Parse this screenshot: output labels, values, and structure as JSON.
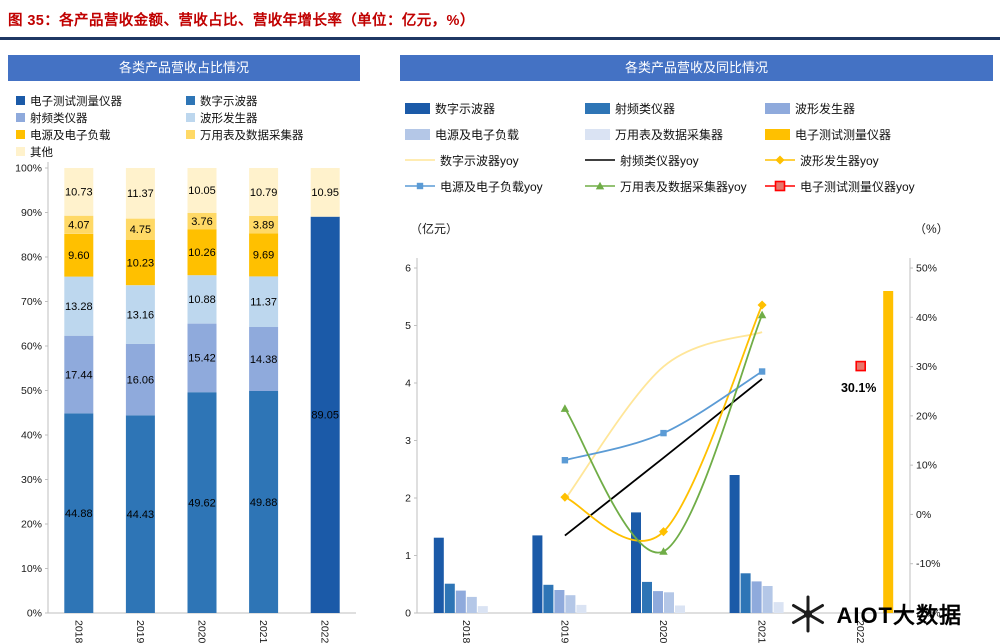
{
  "figure": {
    "title": "图 35：各产品营收金额、营收占比、营收年增长率（单位：亿元，%）",
    "title_color": "#C00000",
    "rule_color": "#1F3864",
    "header_bg": "#4472C4"
  },
  "watermark": {
    "text": "AIOT大数据",
    "logo": "asterisk-logo"
  },
  "chart_data": [
    {
      "id": "revenue-share",
      "type": "bar",
      "subtype": "stacked-100",
      "title": "各类产品营收占比情况",
      "categories": [
        "2018",
        "2019",
        "2020",
        "2021",
        "2022"
      ],
      "series": [
        {
          "name": "电子测试测量仪器",
          "color": "#1B5AA8",
          "values": [
            0,
            0,
            0,
            0,
            89.05
          ]
        },
        {
          "name": "数字示波器",
          "color": "#2E75B6",
          "values": [
            44.88,
            44.43,
            49.62,
            49.88,
            0
          ]
        },
        {
          "name": "射频类仪器",
          "color": "#8FAADC",
          "values": [
            17.44,
            16.06,
            15.42,
            14.38,
            0
          ]
        },
        {
          "name": "波形发生器",
          "color": "#BDD7EE",
          "values": [
            13.28,
            13.16,
            10.88,
            11.37,
            0
          ]
        },
        {
          "name": "电源及电子负载",
          "color": "#FFC000",
          "values": [
            9.6,
            10.23,
            10.26,
            9.69,
            0
          ]
        },
        {
          "name": "万用表及数据采集器",
          "color": "#FFD966",
          "values": [
            4.07,
            4.75,
            3.76,
            3.89,
            0
          ]
        },
        {
          "name": "其他",
          "color": "#FFF2CC",
          "values": [
            10.73,
            11.37,
            10.05,
            10.79,
            10.95
          ]
        }
      ],
      "ylabel": "",
      "ylim": [
        0,
        100
      ],
      "ytick_step": 10,
      "ytick_format": "percent",
      "grid": false,
      "legend_position": "top"
    },
    {
      "id": "revenue-and-yoy",
      "type": "bar",
      "subtype": "combo-bar-line",
      "title": "各类产品营收及同比情况",
      "categories": [
        "2018",
        "2019",
        "2020",
        "2021",
        "2022"
      ],
      "left_axis": {
        "label": "（亿元）",
        "min": 0,
        "max": 6,
        "step": 1
      },
      "right_axis": {
        "label": "（%）",
        "min": -20,
        "max": 50,
        "step": 10,
        "suffix": "%"
      },
      "bars": [
        {
          "name": "数字示波器",
          "color": "#1B5AA8",
          "values": [
            1.31,
            1.35,
            1.75,
            2.4,
            null
          ]
        },
        {
          "name": "射频类仪器",
          "color": "#2E75B6",
          "values": [
            0.51,
            0.49,
            0.54,
            0.69,
            null
          ]
        },
        {
          "name": "波形发生器",
          "color": "#8FAADC",
          "values": [
            0.39,
            0.4,
            0.38,
            0.55,
            null
          ]
        },
        {
          "name": "电源及电子负载",
          "color": "#B4C7E7",
          "values": [
            0.28,
            0.31,
            0.36,
            0.47,
            null
          ]
        },
        {
          "name": "万用表及数据采集器",
          "color": "#DAE3F3",
          "values": [
            0.12,
            0.14,
            0.13,
            0.19,
            null
          ]
        },
        {
          "name": "电子测试测量仪器",
          "color": "#FFC000",
          "values": [
            null,
            null,
            null,
            null,
            5.6
          ]
        }
      ],
      "lines": [
        {
          "name": "数字示波器yoy",
          "color": "#FFE699",
          "marker": "none",
          "values": [
            null,
            3.0,
            30.0,
            37.0,
            null
          ]
        },
        {
          "name": "射频类仪器yoy",
          "color": "#000000",
          "marker": "none",
          "values": [
            null,
            -4.3,
            11.5,
            27.5,
            null
          ]
        },
        {
          "name": "波形发生器yoy",
          "color": "#FFC000",
          "marker": "diamond",
          "values": [
            null,
            3.5,
            -3.5,
            42.5,
            null
          ]
        },
        {
          "name": "电源及电子负载yoy",
          "color": "#5B9BD5",
          "marker": "square",
          "values": [
            null,
            11.0,
            16.5,
            29.0,
            null
          ]
        },
        {
          "name": "万用表及数据采集器yoy",
          "color": "#70AD47",
          "marker": "triangle",
          "values": [
            null,
            21.5,
            -7.5,
            40.5,
            null
          ]
        },
        {
          "name": "电子测试测量仪器yoy",
          "color": "#FF0000",
          "marker": "open-square",
          "marker_fill": "#E8766B",
          "values": [
            null,
            null,
            null,
            null,
            30.1
          ],
          "point_label": "30.1%"
        }
      ],
      "annotations": [
        {
          "text": "30.1%",
          "category": "2022",
          "axis": "right",
          "value": 30.1
        }
      ],
      "grid": false,
      "legend_position": "top"
    }
  ]
}
